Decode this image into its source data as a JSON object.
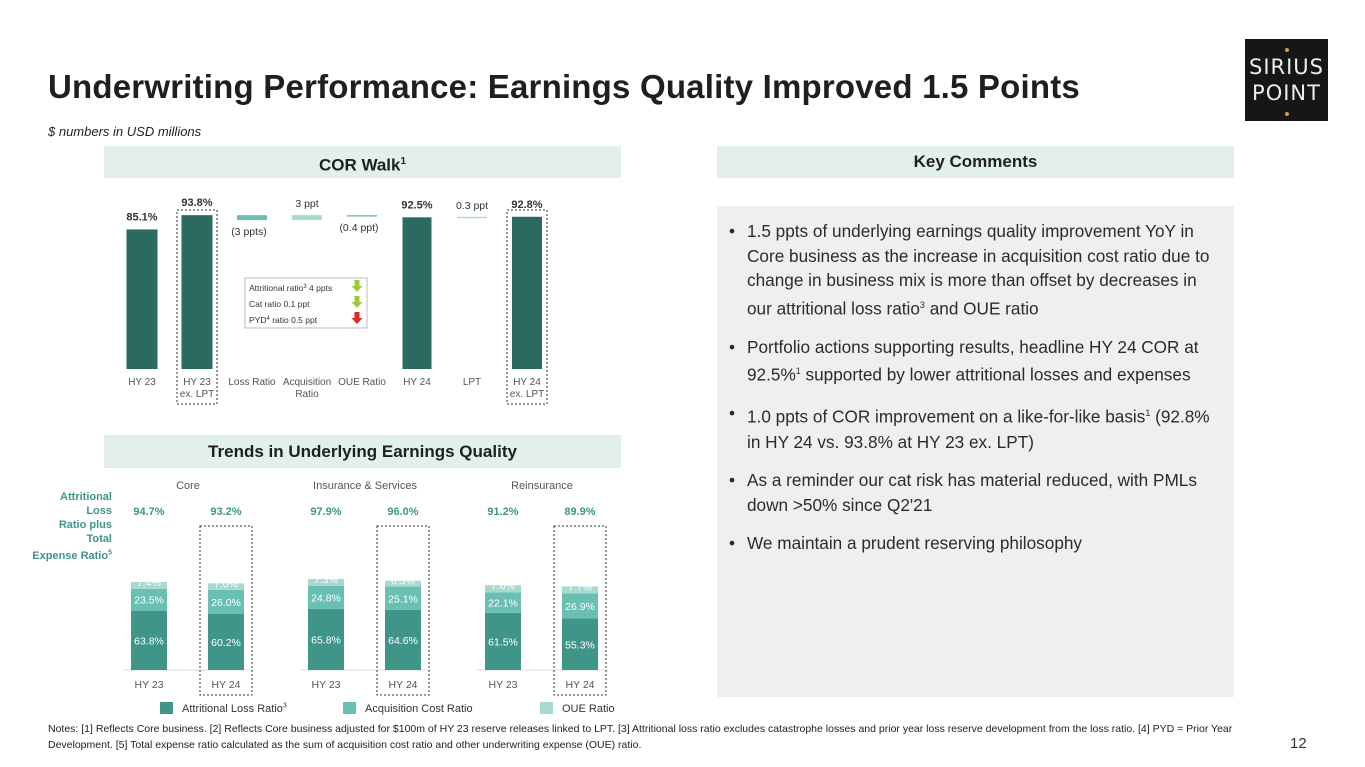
{
  "header": {
    "title": "Underwriting Performance: Earnings Quality Improved 1.5 Points",
    "subtitle": "$ numbers in USD millions",
    "logo_line1": "SIRIUS",
    "logo_line2": "POINT"
  },
  "sections": {
    "cor_walk": "COR Walk",
    "cor_walk_sup": "1",
    "key_comments": "Key Comments",
    "trends": "Trends in Underlying Earnings Quality"
  },
  "colors": {
    "dark_teal": "#2b6b5f",
    "mid_teal": "#3f9688",
    "light_teal": "#69bfb2",
    "pale_teal": "#a6d9d0",
    "band_bg": "#e2efed"
  },
  "chart_data": [
    {
      "type": "bar",
      "subtype": "waterfall",
      "categories": [
        "HY 23",
        "HY 23 ex. LPT",
        "Loss Ratio",
        "Acquisition Ratio",
        "OUE Ratio",
        "HY 24",
        "LPT",
        "HY 24 ex. LPT"
      ],
      "category_labels": [
        [
          "HY 23"
        ],
        [
          "HY 23",
          "ex. LPT"
        ],
        [
          "Loss Ratio"
        ],
        [
          "Acquisition",
          "Ratio"
        ],
        [
          "OUE Ratio"
        ],
        [
          "HY 24"
        ],
        [
          "LPT"
        ],
        [
          "HY 24",
          "ex. LPT"
        ]
      ],
      "category_sup": [
        "",
        "2",
        "",
        "",
        "",
        "",
        "",
        ""
      ],
      "values": [
        85.1,
        93.8,
        -3,
        3,
        -0.4,
        92.5,
        0.3,
        92.8
      ],
      "kinds": [
        "total",
        "total",
        "delta",
        "delta",
        "delta",
        "total",
        "delta",
        "total"
      ],
      "labels": [
        "85.1%",
        "93.8%",
        "(3 ppts)",
        "3 ppt",
        "(0.4 ppt)",
        "92.5%",
        "0.3 ppt",
        "92.8%"
      ],
      "highlighted": [
        "HY 23 ex. LPT",
        "HY 24 ex. LPT"
      ],
      "ylim": [
        0,
        100
      ],
      "loss_ratio_breakdown": [
        {
          "pre": "Attritional ratio",
          "sup": "3",
          "post": " 4 ppts",
          "direction": "down",
          "color": "#9cc93a"
        },
        {
          "pre": "Cat ratio 0.1 ppt",
          "sup": "",
          "post": "",
          "direction": "down",
          "color": "#9cc93a"
        },
        {
          "pre": "PYD",
          "sup": "4",
          "post": " ratio 0.5 ppt",
          "direction": "up",
          "color": "#e0262b"
        }
      ]
    },
    {
      "type": "bar",
      "subtype": "stacked",
      "y_axis_label": "Attritional Loss Ratio plus Total Expense Ratio",
      "y_axis_label_lines": [
        "Attritional Loss",
        "Ratio plus Total",
        "Expense Ratio"
      ],
      "y_axis_label_sup": "5",
      "groups": [
        {
          "name": "Core",
          "categories": [
            "HY 23",
            "HY 24"
          ],
          "totals": [
            "94.7%",
            "93.2%"
          ],
          "attritional_loss": [
            63.8,
            60.2
          ],
          "acquisition_cost": [
            23.5,
            26.0
          ],
          "oue": [
            7.4,
            7.0
          ],
          "labels": [
            [
              "63.8%",
              "23.5%",
              "7.4%"
            ],
            [
              "60.2%",
              "26.0%",
              "7.0%"
            ]
          ]
        },
        {
          "name": "Insurance & Services",
          "categories": [
            "HY 23",
            "HY 24"
          ],
          "totals": [
            "97.9%",
            "96.0%"
          ],
          "attritional_loss": [
            65.8,
            64.6
          ],
          "acquisition_cost": [
            24.8,
            25.1
          ],
          "oue": [
            7.3,
            6.3
          ],
          "labels": [
            [
              "65.8%",
              "24.8%",
              "7.3%"
            ],
            [
              "64.6%",
              "25.1%",
              "6.3%"
            ]
          ]
        },
        {
          "name": "Reinsurance",
          "categories": [
            "HY 23",
            "HY 24"
          ],
          "totals": [
            "91.2%",
            "89.9%"
          ],
          "attritional_loss": [
            61.5,
            55.3
          ],
          "acquisition_cost": [
            22.1,
            26.9
          ],
          "oue": [
            7.6,
            7.7
          ],
          "labels": [
            [
              "61.5%",
              "22.1%",
              "7.6%"
            ],
            [
              "55.3%",
              "26.9%",
              "7.7%"
            ]
          ]
        }
      ],
      "highlighted": [
        "HY 24"
      ],
      "legend": [
        {
          "label": "Attritional Loss Ratio",
          "sup": "3",
          "color": "#3f9688"
        },
        {
          "label": "Acquisition Cost Ratio",
          "sup": "",
          "color": "#69bfb2"
        },
        {
          "label": "OUE Ratio",
          "sup": "",
          "color": "#a6d9d0"
        }
      ]
    }
  ],
  "comments": [
    {
      "parts": [
        "1.5 ppts of underlying earnings quality improvement YoY in Core business as the increase in acquisition cost ratio due to change in business mix is more than offset by decreases in our attritional loss ratio",
        "3",
        " and OUE ratio"
      ]
    },
    {
      "parts": [
        "Portfolio actions supporting results, headline HY 24 COR at 92.5%",
        "1",
        " supported by lower attritional losses and expenses"
      ]
    },
    {
      "parts": [
        "1.0 ppts of COR improvement on a like-for-like basis",
        "1",
        " (92.8% in HY 24 vs. 93.8% at HY 23 ex. LPT)"
      ]
    },
    {
      "parts": [
        "As a reminder our cat risk has material reduced, with PMLs down >50% since Q2'21"
      ]
    },
    {
      "parts": [
        "We maintain a prudent reserving philosophy"
      ]
    }
  ],
  "footer": {
    "notes": "Notes: [1] Reflects Core business. [2] Reflects Core business adjusted for $100m of HY 23 reserve releases linked to LPT. [3] Attritional loss ratio excludes catastrophe losses and prior year loss reserve development from the loss ratio. [4] PYD = Prior Year Development. [5] Total expense ratio calculated as the sum of acquisition cost ratio and other underwriting expense (OUE) ratio.",
    "page_number": "12"
  }
}
